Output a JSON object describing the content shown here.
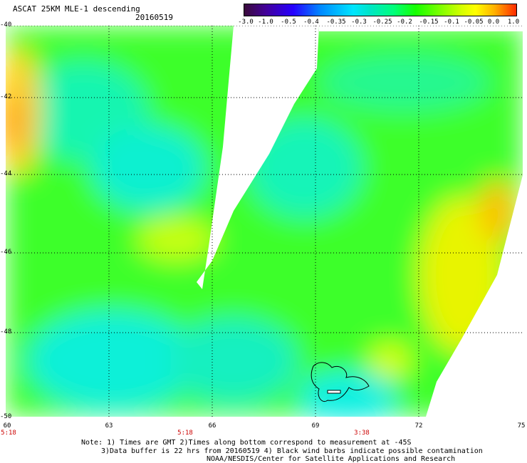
{
  "header": {
    "title": "ASCAT 25KM MLE-1 descending",
    "date": "20160519"
  },
  "color_scale": {
    "labels": [
      "-3.0",
      "-1.0",
      "-0.5",
      "-0.4",
      "-0.35",
      "-0.3",
      "-0.25",
      "-0.2",
      "-0.15",
      "-0.1",
      "-0.05",
      "0.0",
      "1.0"
    ]
  },
  "map": {
    "lat_labels": [
      "-40",
      "-42",
      "-44",
      "-46",
      "-48",
      "-50"
    ],
    "lon_labels": [
      "60",
      "63",
      "66",
      "69",
      "72",
      "75"
    ],
    "pass_times": [
      "5:18",
      "5:18",
      "3:38"
    ],
    "colors": {
      "low": "#00e5ff",
      "mid": "#15ff00",
      "high": "#ffb000",
      "swath_gap": "#ffffff"
    }
  },
  "footer": {
    "note1": "Note: 1) Times are GMT 2)Times along bottom correspond to measurement at -45S",
    "note2": "3)Data buffer is 22 hrs from 20160519 4) Black wind barbs indicate possible contamination",
    "credit": "NOAA/NESDIS/Center for Satellite Applications and Research"
  }
}
